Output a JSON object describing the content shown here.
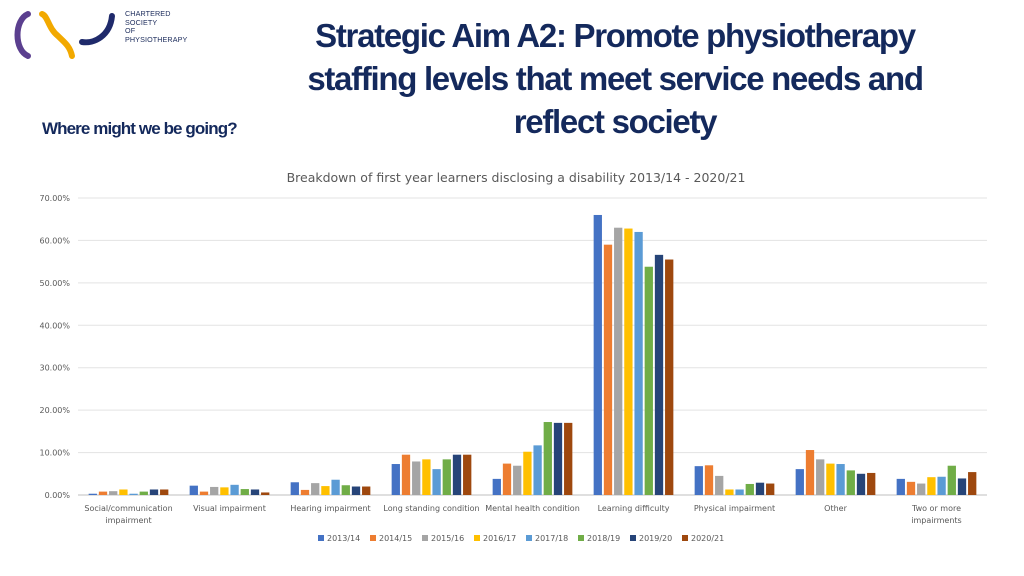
{
  "header": {
    "logo_lines": [
      "CHARTERED",
      "SOCIETY",
      "OF",
      "PHYSIOTHERAPY"
    ],
    "title_lines": [
      "Strategic Aim A2: Promote physiotherapy",
      "staffing levels that meet service needs and",
      "reflect society"
    ],
    "subtitle": "Where might we be going?"
  },
  "colors": {
    "title": "#14295c",
    "logo_purple": "#5b3f8f",
    "logo_gold": "#f2a900",
    "logo_navy": "#1f2a6b"
  },
  "chart_data": {
    "type": "bar",
    "title": "Breakdown of first year learners disclosing a disability 2013/14 - 2020/21",
    "xlabel": "",
    "ylabel": "",
    "ylim": [
      0,
      70
    ],
    "yticks": [
      "0.00%",
      "10.00%",
      "20.00%",
      "30.00%",
      "40.00%",
      "50.00%",
      "60.00%",
      "70.00%"
    ],
    "grid": true,
    "legend_position": "bottom",
    "categories": [
      [
        "Social/communication",
        "impairment"
      ],
      [
        "Visual impairment"
      ],
      [
        "Hearing impairment"
      ],
      [
        "Long standing condition"
      ],
      [
        "Mental health condition"
      ],
      [
        "Learning difficulty"
      ],
      [
        "Physical impairment"
      ],
      [
        "Other"
      ],
      [
        "Two or more",
        "impairments"
      ]
    ],
    "series": [
      {
        "name": "2013/14",
        "color": "#4472c4",
        "values": [
          0.3,
          2.2,
          3.0,
          7.3,
          3.8,
          66.0,
          6.8,
          6.1,
          3.8
        ]
      },
      {
        "name": "2014/15",
        "color": "#ed7d31",
        "values": [
          0.8,
          0.8,
          1.2,
          9.5,
          7.4,
          59.0,
          7.0,
          10.6,
          3.1
        ]
      },
      {
        "name": "2015/16",
        "color": "#a5a5a5",
        "values": [
          0.9,
          1.9,
          2.8,
          7.9,
          6.9,
          63.0,
          4.5,
          8.4,
          2.7
        ]
      },
      {
        "name": "2016/17",
        "color": "#ffc000",
        "values": [
          1.3,
          1.8,
          2.1,
          8.4,
          10.2,
          62.8,
          1.3,
          7.4,
          4.2
        ]
      },
      {
        "name": "2017/18",
        "color": "#5b9bd5",
        "values": [
          0.3,
          2.4,
          3.6,
          6.1,
          11.7,
          62.0,
          1.3,
          7.3,
          4.3
        ]
      },
      {
        "name": "2018/19",
        "color": "#70ad47",
        "values": [
          0.8,
          1.4,
          2.3,
          8.4,
          17.2,
          53.8,
          2.6,
          5.8,
          6.9
        ]
      },
      {
        "name": "2019/20",
        "color": "#264478",
        "values": [
          1.3,
          1.3,
          2.0,
          9.5,
          17.0,
          56.6,
          2.9,
          5.0,
          3.9
        ]
      },
      {
        "name": "2020/21",
        "color": "#9e480e",
        "values": [
          1.3,
          0.6,
          2.0,
          9.5,
          17.0,
          55.5,
          2.7,
          5.2,
          5.4
        ]
      }
    ]
  }
}
